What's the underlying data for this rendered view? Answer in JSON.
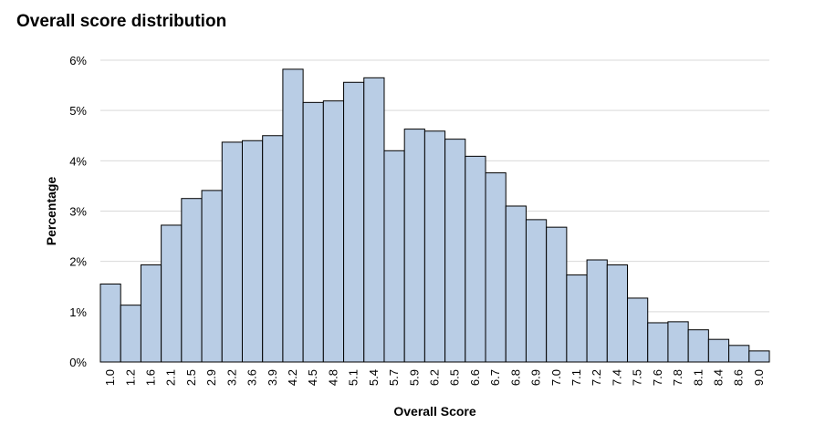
{
  "chart_data": {
    "type": "bar",
    "title": "Overall score distribution",
    "xlabel": "Overall Score",
    "ylabel": "Percentage",
    "categories": [
      "1.0",
      "1.2",
      "1.6",
      "2.1",
      "2.5",
      "2.9",
      "3.2",
      "3.6",
      "3.9",
      "4.2",
      "4.5",
      "4.8",
      "5.1",
      "5.4",
      "5.7",
      "5.9",
      "6.2",
      "6.5",
      "6.6",
      "6.7",
      "6.8",
      "6.9",
      "7.0",
      "7.1",
      "7.2",
      "7.4",
      "7.5",
      "7.6",
      "7.8",
      "8.1",
      "8.4",
      "8.6",
      "9.0"
    ],
    "values": [
      1.55,
      1.13,
      1.93,
      2.72,
      3.25,
      3.41,
      4.37,
      4.4,
      4.5,
      5.82,
      5.16,
      5.19,
      5.56,
      5.65,
      4.2,
      4.63,
      4.59,
      4.43,
      4.09,
      3.76,
      3.1,
      2.83,
      2.68,
      1.73,
      2.03,
      1.93,
      1.27,
      0.78,
      0.8,
      0.64,
      0.45,
      0.33,
      0.22
    ],
    "ylim": [
      0,
      6
    ],
    "yticks": [
      "0%",
      "1%",
      "2%",
      "3%",
      "4%",
      "5%",
      "6%"
    ],
    "grid": true,
    "legend": "none",
    "bar_color": "#b9cde5",
    "bar_edge_color": "#000000",
    "grid_color": "#d9d9d9"
  }
}
